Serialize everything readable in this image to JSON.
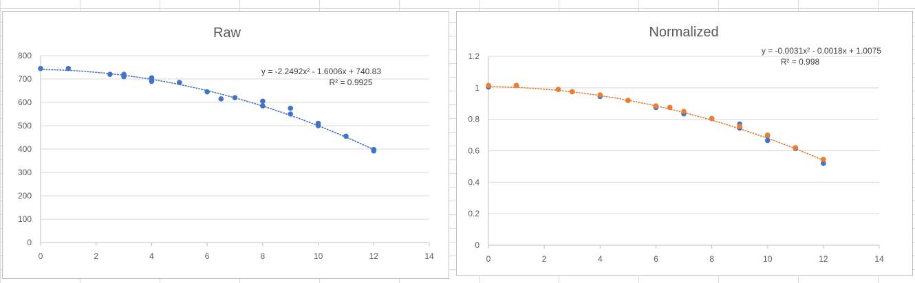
{
  "chart_data": [
    {
      "type": "scatter",
      "title": "Raw",
      "xlabel": "",
      "ylabel": "",
      "xlim": [
        0,
        14
      ],
      "ylim": [
        0,
        800
      ],
      "x_ticks": [
        "0",
        "2",
        "4",
        "6",
        "8",
        "10",
        "12",
        "14"
      ],
      "y_ticks": [
        "0",
        "100",
        "200",
        "300",
        "400",
        "500",
        "600",
        "700",
        "800"
      ],
      "grid": true,
      "legend": "none",
      "series": [
        {
          "color": "#4472c4",
          "points": [
            [
              0,
              745
            ],
            [
              1,
              745
            ],
            [
              2.5,
              720
            ],
            [
              3,
              720
            ],
            [
              3,
              710
            ],
            [
              4,
              705
            ],
            [
              4,
              695
            ],
            [
              4,
              690
            ],
            [
              5,
              685
            ],
            [
              6,
              645
            ],
            [
              6.5,
              615
            ],
            [
              7,
              620
            ],
            [
              8,
              605
            ],
            [
              8,
              585
            ],
            [
              9,
              575
            ],
            [
              9,
              550
            ],
            [
              10,
              510
            ],
            [
              10,
              500
            ],
            [
              11,
              455
            ],
            [
              12,
              398
            ],
            [
              12,
              392
            ]
          ],
          "trendline": {
            "type": "polynomial-2",
            "coef": [
              -2.2492,
              -1.6006,
              740.83
            ],
            "style": "dotted",
            "equation": "y = -2.2492x² - 1.6006x + 740.83",
            "r2": "R² = 0.9925"
          }
        }
      ]
    },
    {
      "type": "scatter",
      "title": "Normalized",
      "xlabel": "",
      "ylabel": "",
      "xlim": [
        0,
        14
      ],
      "ylim": [
        0,
        1.2
      ],
      "x_ticks": [
        "0",
        "2",
        "4",
        "6",
        "8",
        "10",
        "12",
        "14"
      ],
      "y_ticks": [
        "0",
        "0.2",
        "0.4",
        "0.6",
        "0.8",
        "1",
        "1.2"
      ],
      "grid": true,
      "legend": "none",
      "series": [
        {
          "color": "#4472c4",
          "points": [
            [
              0,
              1.005
            ],
            [
              1,
              1.015
            ],
            [
              2.5,
              0.99
            ],
            [
              3,
              0.975
            ],
            [
              4,
              0.945
            ],
            [
              5,
              0.92
            ],
            [
              6,
              0.875
            ],
            [
              6.5,
              0.875
            ],
            [
              7,
              0.835
            ],
            [
              8,
              0.805
            ],
            [
              9,
              0.77
            ],
            [
              9,
              0.745
            ],
            [
              10,
              0.695
            ],
            [
              10,
              0.665
            ],
            [
              11,
              0.615
            ],
            [
              12,
              0.52
            ]
          ]
        },
        {
          "color": "#ed7d31",
          "points": [
            [
              0,
              1.015
            ],
            [
              1,
              1.015
            ],
            [
              2.5,
              0.99
            ],
            [
              3,
              0.975
            ],
            [
              4,
              0.955
            ],
            [
              5,
              0.92
            ],
            [
              6,
              0.885
            ],
            [
              6.5,
              0.875
            ],
            [
              7,
              0.85
            ],
            [
              8,
              0.805
            ],
            [
              9,
              0.755
            ],
            [
              10,
              0.7
            ],
            [
              11,
              0.62
            ],
            [
              12,
              0.545
            ]
          ],
          "trendline": {
            "type": "polynomial-2",
            "coef": [
              -0.0031,
              -0.0018,
              1.0075
            ],
            "style": "dotted",
            "equation": "y = -0.0031x² - 0.0018x + 1.0075",
            "r2": "R² = 0.998"
          }
        }
      ]
    }
  ]
}
